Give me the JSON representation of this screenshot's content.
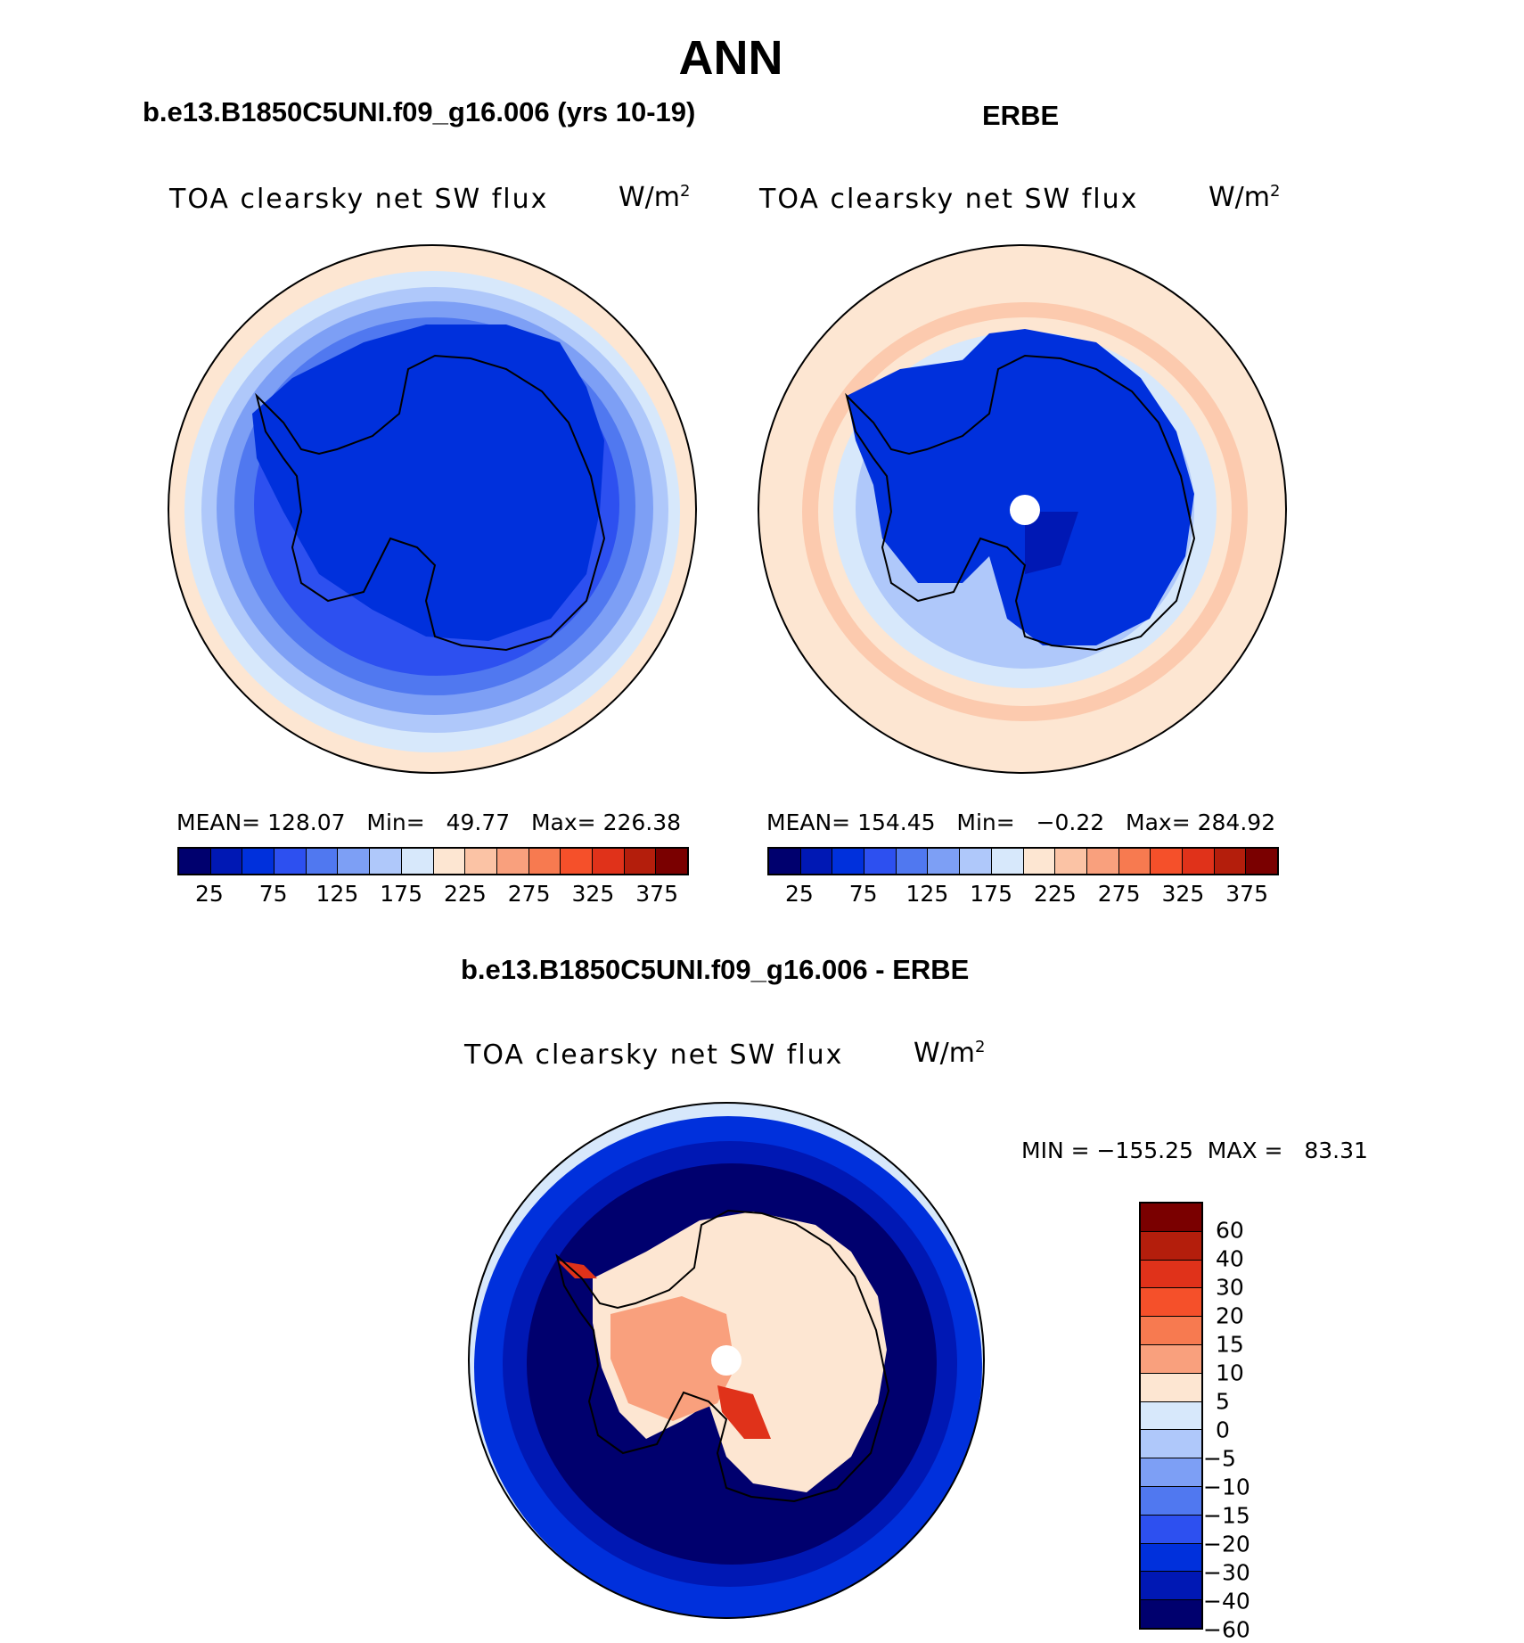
{
  "title": "ANN",
  "panels": [
    {
      "id": "model",
      "heading": "b.e13.B1850C5UNI.f09_g16.006 (yrs 10-19)",
      "variable": "TOA clearsky net SW flux",
      "units": "W/m",
      "units_sup": "2",
      "stats": {
        "mean_label": "MEAN=",
        "mean": "128.07",
        "min_label": "Min=",
        "min": "49.77",
        "max_label": "Max=",
        "max": "226.38"
      }
    },
    {
      "id": "obs",
      "heading": "ERBE",
      "variable": "TOA clearsky net SW flux",
      "units": "W/m",
      "units_sup": "2",
      "stats": {
        "mean_label": "MEAN=",
        "mean": "154.45",
        "min_label": "Min=",
        "min": "−0.22",
        "max_label": "Max=",
        "max": "284.92"
      }
    },
    {
      "id": "diff",
      "heading": "b.e13.B1850C5UNI.f09_g16.006 - ERBE",
      "variable": "TOA clearsky net SW flux",
      "units": "W/m",
      "units_sup": "2",
      "stats": {
        "minmax_text": "MIN = −155.25  MAX =   83.31"
      }
    }
  ],
  "colorbar_abs": {
    "colors": [
      "#00006e",
      "#0018b4",
      "#0030dc",
      "#2d50f0",
      "#5078f0",
      "#7d9ff5",
      "#afc8fa",
      "#d7e8fb",
      "#fde6d2",
      "#fbc3a5",
      "#f9a07d",
      "#f77a50",
      "#f5502a",
      "#e0321a",
      "#b41e0c",
      "#7a0000"
    ],
    "tick_labels": [
      "25",
      "75",
      "125",
      "175",
      "225",
      "275",
      "325",
      "375"
    ]
  },
  "colorbar_diff": {
    "colors": [
      "#7a0000",
      "#b41e0c",
      "#e0321a",
      "#f5502a",
      "#f77a50",
      "#f9a07d",
      "#fde6d2",
      "#d7e8fb",
      "#afc8fa",
      "#7d9ff5",
      "#5078f0",
      "#2d50f0",
      "#0030dc",
      "#0018b4",
      "#00006e"
    ],
    "tick_labels": [
      "60",
      "40",
      "30",
      "20",
      "15",
      "10",
      "5",
      "0",
      "−5",
      "−10",
      "−15",
      "−20",
      "−30",
      "−40",
      "−60"
    ]
  }
}
